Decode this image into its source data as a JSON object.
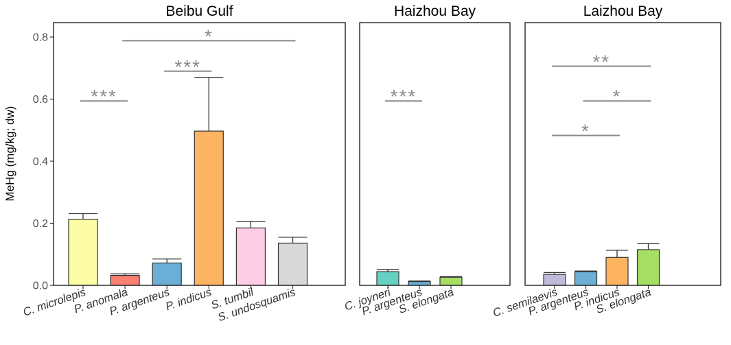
{
  "chart_data": [
    {
      "type": "bar",
      "title": "Beibu Gulf",
      "ylabel": "MeHg (mg/kg; dw)",
      "ylim": [
        0,
        0.8
      ],
      "yticks": [
        "0.0",
        "0.2",
        "0.4",
        "0.6",
        "0.8"
      ],
      "categories": [
        "C. microlepis",
        "P. anomala",
        "P. argenteus",
        "P. indicus",
        "S. tumbil",
        "S. undosquamis"
      ],
      "values": [
        0.213,
        0.032,
        0.072,
        0.497,
        0.185,
        0.136
      ],
      "errors": [
        0.018,
        0.005,
        0.013,
        0.173,
        0.021,
        0.019
      ],
      "colors": [
        "#fdfda6",
        "#fa8072",
        "#6bafd6",
        "#fdb461",
        "#fccde5",
        "#d9d9d9"
      ],
      "significance": [
        {
          "from": 0,
          "to": 1,
          "y": 0.594,
          "label": "***"
        },
        {
          "from": 2,
          "to": 3,
          "y": 0.69,
          "label": "***"
        },
        {
          "from": 1,
          "to": 5,
          "y": 0.788,
          "label": "*"
        }
      ]
    },
    {
      "type": "bar",
      "title": "Haizhou Bay",
      "ylim": [
        0,
        0.8
      ],
      "categories": [
        "C. joyneri",
        "P. argenteus",
        "S. elongata"
      ],
      "values": [
        0.044,
        0.012,
        0.026
      ],
      "errors": [
        0.007,
        0.002,
        0.002
      ],
      "colors": [
        "#66d1c3",
        "#6bafd6",
        "#a6de64"
      ],
      "significance": [
        {
          "from": 0,
          "to": 1,
          "y": 0.594,
          "label": "***"
        }
      ]
    },
    {
      "type": "bar",
      "title": "Laizhou Bay",
      "ylim": [
        0,
        0.8
      ],
      "categories": [
        "C. semilaevis",
        "P. argenteus",
        "P. indicus",
        "S. elongata"
      ],
      "values": [
        0.035,
        0.044,
        0.09,
        0.115
      ],
      "errors": [
        0.006,
        0.002,
        0.023,
        0.02
      ],
      "colors": [
        "#bebada",
        "#6bafd6",
        "#fdb461",
        "#a6de64"
      ],
      "significance": [
        {
          "from": 0,
          "to": 3,
          "y": 0.706,
          "label": "**"
        },
        {
          "from": 1,
          "to": 3,
          "y": 0.594,
          "label": "*"
        },
        {
          "from": 0,
          "to": 2,
          "y": 0.483,
          "label": "*"
        }
      ]
    }
  ]
}
